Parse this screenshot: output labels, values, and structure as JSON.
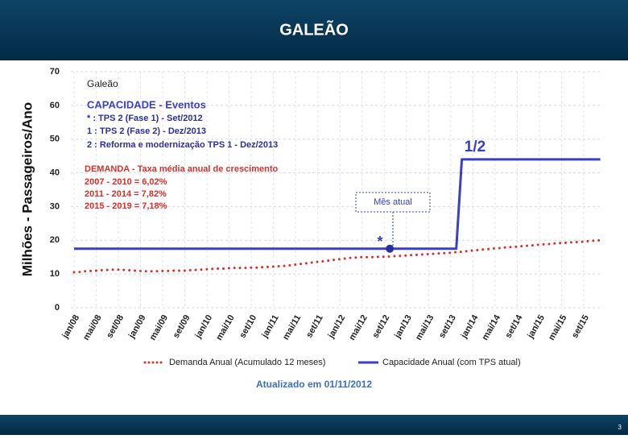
{
  "header": {
    "title": "GALEÃO"
  },
  "chart_data": {
    "type": "line",
    "y_label": "Milhões - Passageiros/Ano",
    "corner_label": "Galeão",
    "categories": [
      "jan/08",
      null,
      null,
      null,
      "mai/08",
      null,
      null,
      null,
      "set/08",
      null,
      null,
      null,
      "jan/09",
      null,
      null,
      null,
      "mai/09",
      null,
      null,
      null,
      "set/09",
      null,
      null,
      null,
      "jan/10",
      null,
      null,
      null,
      "mai/10",
      null,
      null,
      null,
      "set/10",
      null,
      null,
      null,
      "jan/11",
      null,
      null,
      null,
      "mai/11",
      null,
      null,
      null,
      "set/11",
      null,
      null,
      null,
      "jan/12",
      null,
      null,
      null,
      "mai/12",
      null,
      null,
      null,
      "set/12",
      null,
      null,
      null,
      "jan/13",
      null,
      null,
      null,
      "mai/13",
      null,
      null,
      null,
      "set/13",
      null,
      null,
      null,
      "jan/14",
      null,
      null,
      null,
      "mai/14",
      null,
      null,
      null,
      "set/14",
      null,
      null,
      null,
      "jan/15",
      null,
      null,
      null,
      "mai/15",
      null,
      null,
      null,
      "set/15",
      null,
      null,
      null
    ],
    "series": [
      {
        "name": "Demanda Anual (Acumulado 12 meses)",
        "color": "#d7302a",
        "style": "dotted",
        "values": [
          10.5,
          10.6,
          10.8,
          10.9,
          11.0,
          11.1,
          11.2,
          11.3,
          11.3,
          11.2,
          11.1,
          11.0,
          10.9,
          10.8,
          10.8,
          10.8,
          10.9,
          10.9,
          11.0,
          11.0,
          11.0,
          11.1,
          11.2,
          11.3,
          11.4,
          11.5,
          11.6,
          11.6,
          11.7,
          11.8,
          11.8,
          11.8,
          11.9,
          11.9,
          12.0,
          12.1,
          12.2,
          12.3,
          12.4,
          12.6,
          12.8,
          13.0,
          13.2,
          13.4,
          13.6,
          13.8,
          14.0,
          14.2,
          14.4,
          14.6,
          14.8,
          14.9,
          15.0,
          15.0,
          15.0,
          15.1,
          15.1,
          15.2,
          15.3,
          15.4,
          15.5,
          15.6,
          15.7,
          15.8,
          15.9,
          16.0,
          16.1,
          16.2,
          16.3,
          16.5,
          16.6,
          16.8,
          17.0,
          17.1,
          17.3,
          17.4,
          17.6,
          17.7,
          17.9,
          18.0,
          18.1,
          18.3,
          18.4,
          18.5,
          18.7,
          18.8,
          18.9,
          19.1,
          19.2,
          19.3,
          19.4,
          19.5,
          19.6,
          19.8,
          19.9,
          20.0
        ]
      },
      {
        "name": "Capacidade Anual (com TPS atual)",
        "color": "#3a3fc8",
        "style": "solid",
        "values": [
          17.5,
          17.5,
          17.5,
          17.5,
          17.5,
          17.5,
          17.5,
          17.5,
          17.5,
          17.5,
          17.5,
          17.5,
          17.5,
          17.5,
          17.5,
          17.5,
          17.5,
          17.5,
          17.5,
          17.5,
          17.5,
          17.5,
          17.5,
          17.5,
          17.5,
          17.5,
          17.5,
          17.5,
          17.5,
          17.5,
          17.5,
          17.5,
          17.5,
          17.5,
          17.5,
          17.5,
          17.5,
          17.5,
          17.5,
          17.5,
          17.5,
          17.5,
          17.5,
          17.5,
          17.5,
          17.5,
          17.5,
          17.5,
          17.5,
          17.5,
          17.5,
          17.5,
          17.5,
          17.5,
          17.5,
          17.5,
          17.5,
          17.5,
          17.5,
          17.5,
          17.5,
          17.5,
          17.5,
          17.5,
          17.5,
          17.5,
          17.5,
          17.5,
          17.5,
          17.5,
          44,
          44,
          44,
          44,
          44,
          44,
          44,
          44,
          44,
          44,
          44,
          44,
          44,
          44,
          44,
          44,
          44,
          44,
          44,
          44,
          44,
          44,
          44,
          44,
          44,
          44
        ]
      }
    ],
    "ylim": [
      0,
      70
    ],
    "yticks": [
      0,
      10,
      20,
      30,
      40,
      50,
      60,
      70
    ],
    "grid": true,
    "capacity_box": {
      "title": "CAPACIDADE - Eventos",
      "lines": [
        "* : TPS 2 (Fase 1) - Set/2012",
        "1 : TPS 2 (Fase 2) - Dez/2013",
        "2 : Reforma e modernização TPS 1 -  Dez/2013"
      ]
    },
    "demand_box": {
      "title": "DEMANDA - Taxa média anual de crescimento",
      "lines": [
        "2007 - 2010 =    6,02%",
        "2011 - 2014 =    7,82%",
        "2015 - 2019 =    7,18%"
      ]
    },
    "step_label": "1/2",
    "current_marker": {
      "text": "Mês atual",
      "symbol": "*",
      "value": 17.5
    },
    "updated": "Atualizado em 01/11/2012"
  },
  "footer": {
    "page_number": "3"
  }
}
